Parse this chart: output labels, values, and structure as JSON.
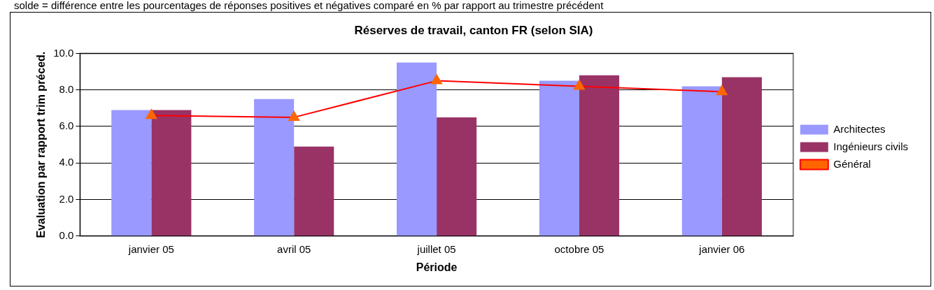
{
  "chart_data": {
    "type": "bar",
    "title": "Réserves de travail, canton FR (selon SIA)",
    "xlabel": "Période",
    "ylabel": "Evaluation par rapport trim préced.",
    "annotations": [
      "solde = différence entre les pourcentages de réponses positives et négatives comparé en % par rapport au trimestre précédent"
    ],
    "categories": [
      "janvier 05",
      "avril 05",
      "juillet 05",
      "octobre 05",
      "janvier 06"
    ],
    "series": [
      {
        "name": "Architectes",
        "color": "#9999ff",
        "values": [
          6.9,
          7.5,
          9.5,
          8.5,
          8.2
        ]
      },
      {
        "name": "Ingénieurs civils",
        "color": "#993366",
        "values": [
          6.9,
          4.9,
          6.5,
          8.8,
          8.7
        ]
      },
      {
        "name": "Général",
        "type": "line",
        "color": "#ff0000",
        "marker": "triangle",
        "values": [
          6.6,
          6.5,
          8.5,
          8.2,
          7.9
        ]
      }
    ],
    "ylim": [
      0,
      10
    ],
    "yticks": [
      {
        "value": 0,
        "label": "0.0"
      },
      {
        "value": 2,
        "label": "2.0"
      },
      {
        "value": 4,
        "label": "4.0"
      },
      {
        "value": 6,
        "label": "6.0"
      },
      {
        "value": 8,
        "label": "8.0"
      },
      {
        "value": 10,
        "label": "10.0"
      }
    ],
    "grid": "y",
    "legend": "right"
  }
}
